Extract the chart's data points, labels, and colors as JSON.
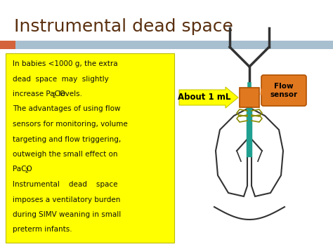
{
  "title": "Instrumental dead space",
  "title_fontsize": 18,
  "title_color": "#5a3010",
  "title_font": "sans-serif",
  "bg_color": "#ffffff",
  "stripe_color": "#a8bfcf",
  "stripe_red_color": "#d4623a",
  "text_box_color": "#ffff00",
  "body_text_fontsize": 7.5,
  "body_text_color": "#111111",
  "arrow_color": "#ffff00",
  "arrow_label": "About 1 mL",
  "arrow_label_fontsize": 8.5,
  "flow_sensor_color": "#e07820",
  "flow_sensor_label": "Flow\nsensor",
  "flow_sensor_fontsize": 7.5,
  "teal_color": "#20a090",
  "olive_color": "#8a8a00",
  "lung_color": "#333333"
}
